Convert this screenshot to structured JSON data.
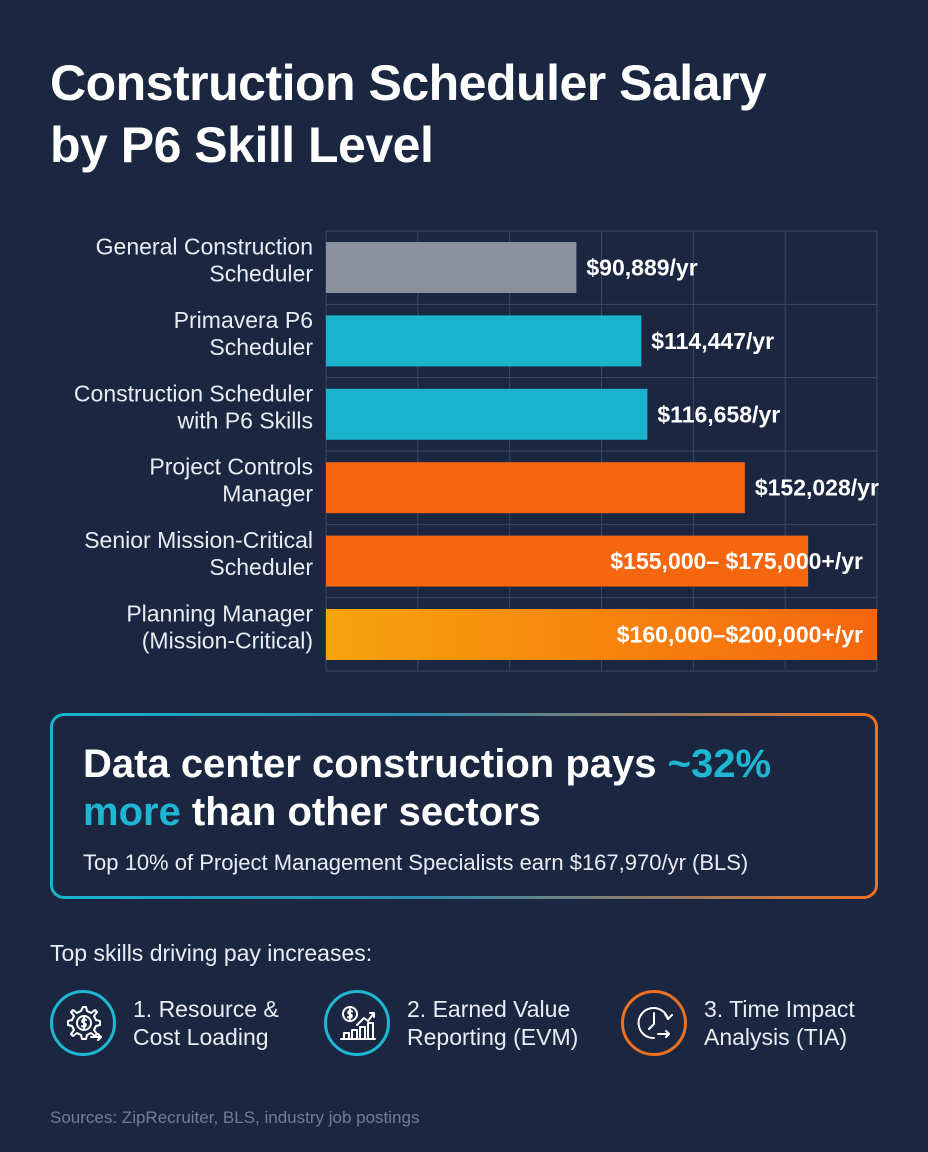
{
  "title_lines": [
    "Construction Scheduler Salary",
    "by P6 Skill Level"
  ],
  "chart_data": {
    "type": "bar",
    "orientation": "horizontal",
    "categories": [
      [
        "General Construction",
        "Scheduler"
      ],
      [
        "Primavera P6",
        "Scheduler"
      ],
      [
        "Construction Scheduler",
        "with P6 Skills"
      ],
      [
        "Project Controls",
        "Manager"
      ],
      [
        "Senior Mission-Critical",
        "Scheduler"
      ],
      [
        "Planning Manager",
        "(Mission-Critical)"
      ]
    ],
    "values": [
      90889,
      114447,
      116658,
      152028,
      175000,
      200000
    ],
    "ranges": [
      null,
      null,
      null,
      null,
      [
        155000,
        175000
      ],
      [
        160000,
        200000
      ]
    ],
    "value_labels": [
      "$90,889/yr",
      "$114,447/yr",
      "$116,658/yr",
      "$152,028/yr",
      "$155,000– $175,000+/yr",
      "$160,000–$200,000+/yr"
    ],
    "value_label_inside": [
      false,
      false,
      false,
      false,
      true,
      true
    ],
    "bar_colors": [
      "#8a919c",
      "#1ab2cc",
      "#1ab2cc",
      "#f5660e",
      "#f5660e",
      "gradient-orange"
    ],
    "gradient_colors": [
      "#f7a30c",
      "#f5660e"
    ],
    "xlim": [
      0,
      200000
    ],
    "grid": true,
    "gridline_count": 6,
    "grid_color": "#3a4862",
    "label_color": "#e8ecf3"
  },
  "callout": {
    "headline_part1": "Data center construction pays ",
    "headline_accent1": "~32%",
    "headline_accent2": "more",
    "headline_part2": " than other sectors",
    "subtext": "Top 10% of Project Management Specialists earn $167,970/yr (BLS)",
    "accent_color": "#1fb6d3"
  },
  "skills": {
    "title": "Top skills driving pay increases:",
    "items": [
      {
        "icon": "gear-dollar-icon",
        "lines": [
          "1. Resource &",
          "Cost Loading"
        ],
        "color": "#1fb6d3"
      },
      {
        "icon": "growth-chart-dollar-icon",
        "lines": [
          "2. Earned Value",
          "Reporting (EVM)"
        ],
        "color": "#1fb6d3"
      },
      {
        "icon": "clock-arrow-icon",
        "lines": [
          "3. Time Impact",
          "Analysis (TIA)"
        ],
        "color": "#f07021"
      }
    ]
  },
  "sources": "Sources: ZipRecruiter, BLS, industry job postings"
}
